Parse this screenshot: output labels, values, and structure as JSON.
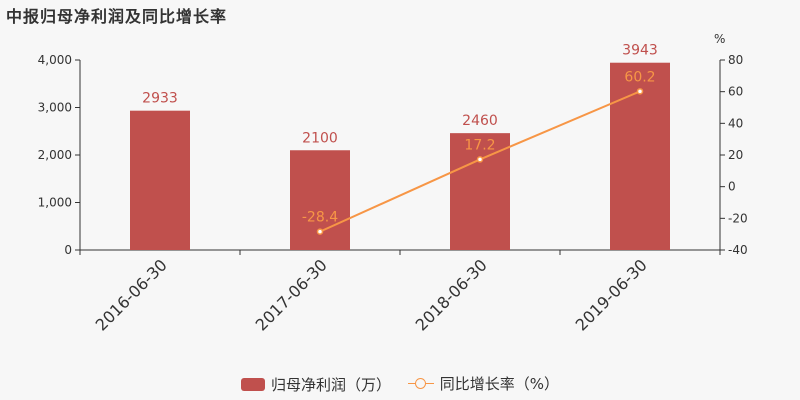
{
  "title": "中报归母净利润及同比增长率",
  "legend": {
    "bar_label": "归母净利润（万）",
    "line_label": "同比增长率（%）"
  },
  "colors": {
    "bar": "#c0504d",
    "line": "#f79646",
    "axis": "#333333"
  },
  "chart_data": {
    "type": "bar",
    "categories": [
      "2016-06-30",
      "2017-06-30",
      "2018-06-30",
      "2019-06-30"
    ],
    "series": [
      {
        "name": "归母净利润（万）",
        "type": "bar",
        "axis": "left",
        "values": [
          2933,
          2100,
          2460,
          3943
        ]
      },
      {
        "name": "同比增长率（%）",
        "type": "line",
        "axis": "right",
        "values": [
          null,
          -28.4,
          17.2,
          60.2
        ]
      }
    ],
    "left_axis": {
      "ylim": [
        0,
        4000
      ],
      "ticks": [
        "0",
        "1,000",
        "2,000",
        "3,000",
        "4,000"
      ]
    },
    "right_axis": {
      "ylim": [
        -40,
        80
      ],
      "unit": "%",
      "ticks": [
        "-40",
        "-20",
        "0",
        "20",
        "40",
        "60",
        "80"
      ]
    },
    "grid": false,
    "legend_position": "bottom"
  }
}
